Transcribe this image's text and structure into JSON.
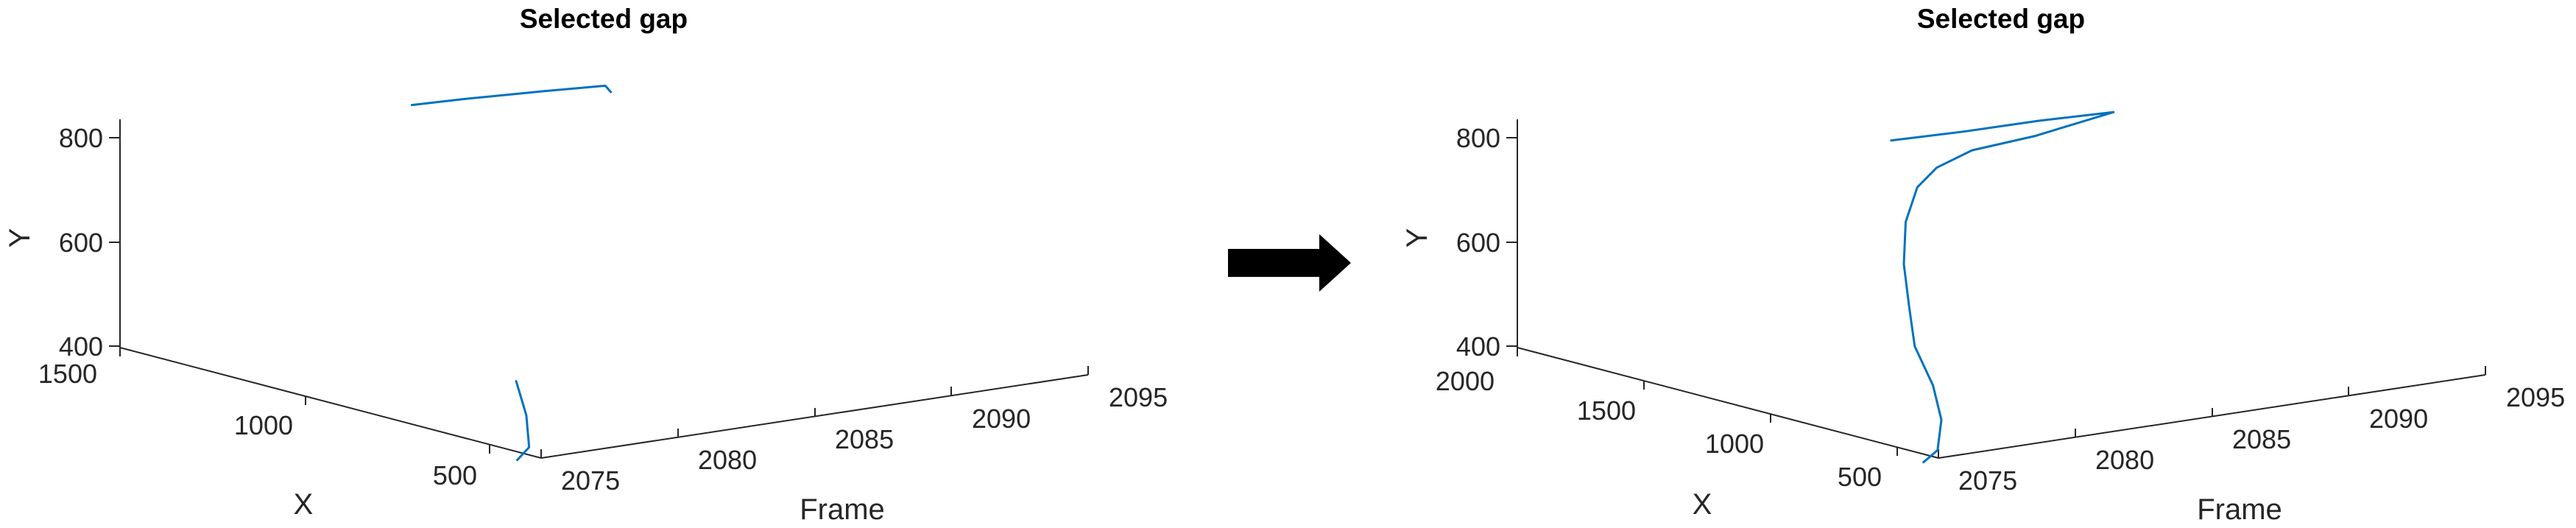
{
  "chart_data": [
    {
      "type": "line3d",
      "title": "Selected gap",
      "xlabel": "X",
      "ylabel": "Y",
      "zlabel": "Frame",
      "frame_ticks": [
        "2075",
        "2080",
        "2085",
        "2090",
        "2095"
      ],
      "x_ticks": [
        "1500",
        "1000",
        "500"
      ],
      "y_ticks": [
        "800",
        "600",
        "400"
      ],
      "color": "#0072BD",
      "series": [
        {
          "segment": "before",
          "points": [
            {
              "frame": 2075.2,
              "x": 480,
              "y": 380
            },
            {
              "frame": 2075.9,
              "x": 500,
              "y": 395
            },
            {
              "frame": 2076.6,
              "x": 560,
              "y": 440
            },
            {
              "frame": 2077.3,
              "x": 640,
              "y": 485
            }
          ]
        },
        {
          "segment": "after",
          "points": [
            {
              "frame": 2085.0,
              "x": 1500,
              "y": 795
            },
            {
              "frame": 2086.5,
              "x": 1470,
              "y": 800
            },
            {
              "frame": 2088.5,
              "x": 1400,
              "y": 812
            },
            {
              "frame": 2089.8,
              "x": 1330,
              "y": 825
            },
            {
              "frame": 2089.6,
              "x": 1300,
              "y": 820
            }
          ]
        }
      ]
    },
    {
      "type": "line3d",
      "title": "Selected gap",
      "xlabel": "X",
      "ylabel": "Y",
      "zlabel": "Frame",
      "frame_ticks": [
        "2075",
        "2080",
        "2085",
        "2090",
        "2095"
      ],
      "x_ticks": [
        "2000",
        "1500",
        "1000",
        "500"
      ],
      "y_ticks": [
        "800",
        "600",
        "400"
      ],
      "color": "#0072BD",
      "series": [
        {
          "segment": "full",
          "points": [
            {
              "frame": 2075.2,
              "x": 480,
              "y": 380
            },
            {
              "frame": 2075.9,
              "x": 500,
              "y": 395
            },
            {
              "frame": 2076.6,
              "x": 560,
              "y": 440
            },
            {
              "frame": 2077.6,
              "x": 700,
              "y": 480
            },
            {
              "frame": 2078.8,
              "x": 900,
              "y": 520
            },
            {
              "frame": 2080.0,
              "x": 1050,
              "y": 565
            },
            {
              "frame": 2081.2,
              "x": 1200,
              "y": 620
            },
            {
              "frame": 2082.2,
              "x": 1300,
              "y": 680
            },
            {
              "frame": 2083.0,
              "x": 1340,
              "y": 735
            },
            {
              "frame": 2083.8,
              "x": 1350,
              "y": 765
            },
            {
              "frame": 2085.0,
              "x": 1340,
              "y": 790
            },
            {
              "frame": 2087.0,
              "x": 1310,
              "y": 805
            },
            {
              "frame": 2089.8,
              "x": 1300,
              "y": 830
            },
            {
              "frame": 2088.0,
              "x": 1400,
              "y": 815
            },
            {
              "frame": 2086.0,
              "x": 1480,
              "y": 800
            },
            {
              "frame": 2084.0,
              "x": 1550,
              "y": 790
            }
          ]
        }
      ]
    }
  ],
  "arrow": {
    "icon": "right-arrow-icon",
    "color": "#000000"
  }
}
